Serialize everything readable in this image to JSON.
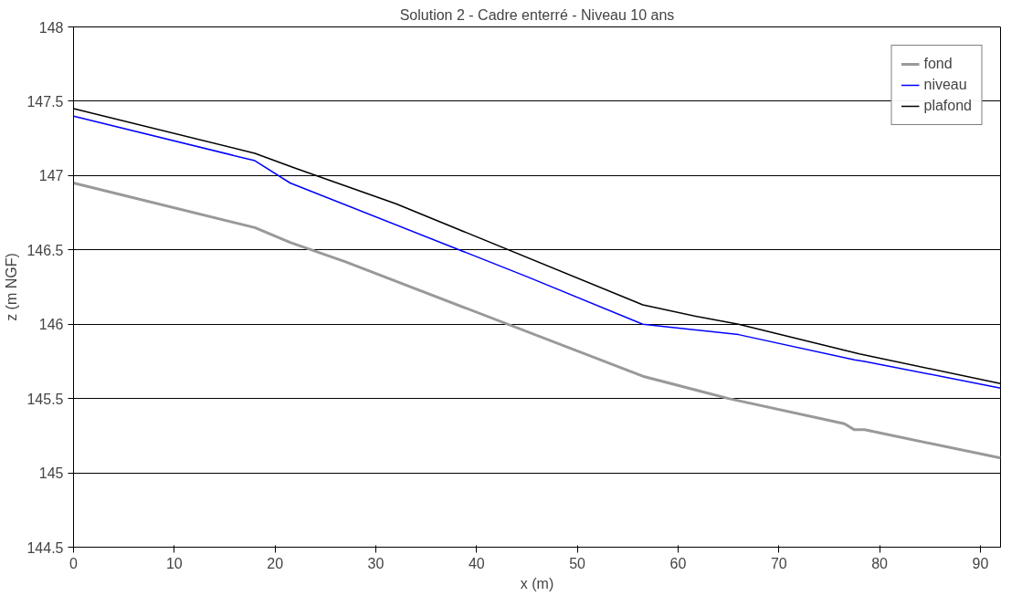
{
  "chart_data": {
    "type": "line",
    "title": "Solution 2 - Cadre enterré - Niveau 10 ans",
    "xlabel": "x (m)",
    "ylabel": "z (m NGF)",
    "xlim": [
      0,
      92
    ],
    "xticks": [
      0,
      10,
      20,
      30,
      40,
      50,
      60,
      70,
      80,
      90
    ],
    "ylim": [
      144.5,
      148
    ],
    "yticks": [
      144.5,
      145,
      145.5,
      146,
      146.5,
      147,
      147.5,
      148
    ],
    "grid": "y",
    "legend": "top right",
    "marker": "none",
    "line_style": "solid",
    "series": [
      {
        "name": "fond",
        "color": "#999999",
        "x": [
          0,
          18,
          21.5,
          27,
          56.5,
          65,
          76.5,
          77.5,
          78.5,
          92
        ],
        "values": [
          146.95,
          146.65,
          146.55,
          146.42,
          145.65,
          145.5,
          145.33,
          145.29,
          145.29,
          145.1
        ]
      },
      {
        "name": "niveau",
        "color": "#0000ff",
        "x": [
          0,
          18,
          21.5,
          45,
          56.5,
          66,
          77.5,
          78.5,
          92
        ],
        "values": [
          147.4,
          147.1,
          146.95,
          146.32,
          146.0,
          145.93,
          145.76,
          145.75,
          145.57
        ]
      },
      {
        "name": "plafond",
        "color": "#000000",
        "x": [
          0,
          18,
          22,
          32,
          56.5,
          62,
          66,
          78,
          92
        ],
        "values": [
          147.45,
          147.15,
          147.05,
          146.81,
          146.13,
          146.05,
          146.0,
          145.8,
          145.6
        ]
      }
    ]
  }
}
